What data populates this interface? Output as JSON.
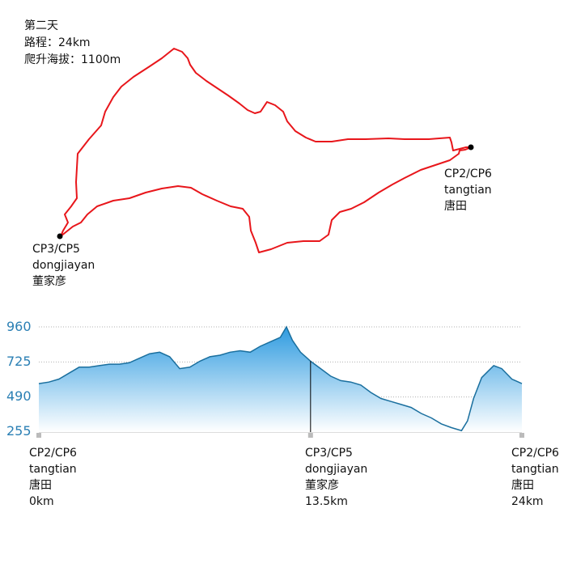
{
  "info": {
    "day": "第二天",
    "distance": "路程：24km",
    "climb": "爬升海拔：1100m"
  },
  "map": {
    "route_color": "#e8161b",
    "checkpoints": [
      {
        "code": "CP2/CP6",
        "pinyin": "tangtian",
        "name": "唐田"
      },
      {
        "code": "CP3/CP5",
        "pinyin": "dongjiayan",
        "name": "董家彦"
      }
    ]
  },
  "chart_data": {
    "type": "area",
    "title": "",
    "xlabel": "",
    "ylabel": "",
    "ylim": [
      255,
      960
    ],
    "xlim": [
      0,
      24
    ],
    "yticks": [
      "960",
      "725",
      "490",
      "255"
    ],
    "grid": true,
    "fill_color": "#3aa3e3",
    "line_color": "#1a6f9e",
    "x_markers": [
      {
        "x": 0,
        "code": "CP2/CP6",
        "pinyin": "tangtian",
        "name": "唐田",
        "dist": "0km"
      },
      {
        "x": 13.5,
        "code": "CP3/CP5",
        "pinyin": "dongjiayan",
        "name": "董家彦",
        "dist": "13.5km"
      },
      {
        "x": 24,
        "code": "CP2/CP6",
        "pinyin": "tangtian",
        "name": "唐田",
        "dist": "24km"
      }
    ],
    "series": [
      {
        "x": [
          0,
          0.5,
          1,
          1.5,
          2,
          2.5,
          3,
          3.5,
          4,
          4.5,
          5,
          5.5,
          6,
          6.5,
          7,
          7.5,
          8,
          8.5,
          9,
          9.5,
          10,
          10.5,
          11,
          11.5,
          12,
          12.3,
          12.6,
          13,
          13.5,
          14,
          14.5,
          15,
          15.5,
          16,
          16.5,
          17,
          17.5,
          18,
          18.5,
          19,
          19.5,
          20,
          20.5,
          21,
          21.3,
          21.6,
          22,
          22.3,
          22.6,
          23,
          23.5,
          24
        ],
        "y": [
          580,
          590,
          610,
          650,
          690,
          690,
          700,
          710,
          710,
          720,
          750,
          780,
          790,
          760,
          680,
          690,
          730,
          760,
          770,
          790,
          800,
          790,
          830,
          860,
          890,
          960,
          870,
          790,
          730,
          680,
          630,
          600,
          590,
          570,
          520,
          480,
          460,
          440,
          420,
          380,
          350,
          310,
          285,
          265,
          330,
          480,
          620,
          660,
          700,
          680,
          610,
          580
        ]
      }
    ]
  }
}
